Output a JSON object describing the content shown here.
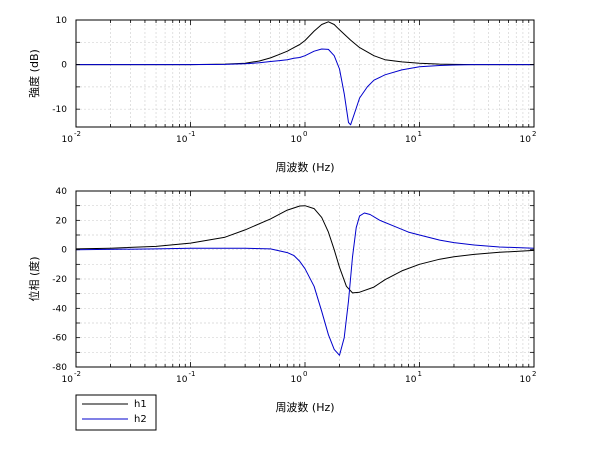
{
  "chart_data": [
    {
      "type": "line",
      "panel": "magnitude",
      "xscale": "log",
      "xlim": [
        0.01,
        100
      ],
      "ylim": [
        -14,
        10
      ],
      "xlabel": "周波数 (Hz)",
      "ylabel": "強度 (dB)",
      "x_ticks": [
        {
          "value": 0.01,
          "base": "10",
          "exp": "-2"
        },
        {
          "value": 0.1,
          "base": "10",
          "exp": "-1"
        },
        {
          "value": 1,
          "base": "10",
          "exp": "0"
        },
        {
          "value": 10,
          "base": "10",
          "exp": "1"
        },
        {
          "value": 100,
          "base": "10",
          "exp": "2"
        }
      ],
      "y_ticks": [
        {
          "value": 10,
          "label": "10"
        },
        {
          "value": 0,
          "label": "0"
        },
        {
          "value": -10,
          "label": "-10"
        }
      ],
      "grid": true,
      "series": [
        {
          "name": "h1",
          "color": "#000000",
          "x": [
            0.01,
            0.05,
            0.1,
            0.2,
            0.3,
            0.4,
            0.5,
            0.6,
            0.7,
            0.8,
            0.9,
            1.0,
            1.2,
            1.4,
            1.6,
            1.8,
            2.0,
            2.5,
            3.0,
            4.0,
            5.0,
            7.0,
            10,
            15,
            20,
            30,
            50,
            100
          ],
          "y": [
            0,
            0,
            0,
            0.1,
            0.3,
            0.8,
            1.5,
            2.3,
            3.0,
            3.8,
            4.5,
            5.4,
            7.5,
            9.0,
            9.6,
            9.0,
            7.8,
            5.5,
            3.8,
            2.0,
            1.1,
            0.6,
            0.3,
            0.1,
            0.05,
            0,
            0,
            0
          ]
        },
        {
          "name": "h2",
          "color": "#0000cc",
          "x": [
            0.01,
            0.05,
            0.1,
            0.2,
            0.3,
            0.4,
            0.5,
            0.6,
            0.7,
            0.8,
            0.9,
            1.0,
            1.2,
            1.4,
            1.6,
            1.8,
            2.0,
            2.2,
            2.4,
            2.5,
            2.7,
            3.0,
            3.5,
            4.0,
            5.0,
            7.0,
            10,
            15,
            20,
            30,
            50,
            100
          ],
          "y": [
            0,
            0,
            0,
            0.05,
            0.2,
            0.4,
            0.7,
            0.9,
            1.1,
            1.4,
            1.6,
            2.0,
            3.0,
            3.5,
            3.4,
            2.0,
            -1.0,
            -6.5,
            -13.0,
            -13.5,
            -11.0,
            -7.5,
            -5.0,
            -3.5,
            -2.3,
            -1.2,
            -0.5,
            -0.2,
            -0.1,
            0,
            0,
            0
          ]
        }
      ]
    },
    {
      "type": "line",
      "panel": "phase",
      "xscale": "log",
      "xlim": [
        0.01,
        100
      ],
      "ylim": [
        -80,
        40
      ],
      "xlabel": "周波数 (Hz)",
      "ylabel": "位相 (度)",
      "x_ticks": [
        {
          "value": 0.01,
          "base": "10",
          "exp": "-2"
        },
        {
          "value": 0.1,
          "base": "10",
          "exp": "-1"
        },
        {
          "value": 1,
          "base": "10",
          "exp": "0"
        },
        {
          "value": 10,
          "base": "10",
          "exp": "1"
        },
        {
          "value": 100,
          "base": "10",
          "exp": "2"
        }
      ],
      "y_ticks": [
        {
          "value": 40,
          "label": "40"
        },
        {
          "value": 20,
          "label": "20"
        },
        {
          "value": 0,
          "label": "0"
        },
        {
          "value": -20,
          "label": "-20"
        },
        {
          "value": -40,
          "label": "-40"
        },
        {
          "value": -60,
          "label": "-60"
        },
        {
          "value": -80,
          "label": "-80"
        }
      ],
      "grid": true,
      "series": [
        {
          "name": "h1",
          "color": "#000000",
          "x": [
            0.01,
            0.02,
            0.05,
            0.1,
            0.2,
            0.3,
            0.5,
            0.7,
            0.9,
            1.0,
            1.2,
            1.4,
            1.6,
            1.8,
            2.0,
            2.3,
            2.6,
            3.0,
            4.0,
            5.0,
            7.0,
            10,
            15,
            20,
            30,
            50,
            100
          ],
          "y": [
            0.5,
            1.0,
            2.2,
            4.5,
            8.5,
            13.5,
            21.0,
            27.0,
            29.8,
            30.0,
            28.0,
            22.0,
            12.0,
            0.0,
            -12.0,
            -25.0,
            -29.5,
            -29.0,
            -25.5,
            -20.5,
            -14.5,
            -10.0,
            -6.5,
            -4.8,
            -3.2,
            -1.8,
            -0.5
          ]
        },
        {
          "name": "h2",
          "color": "#0000cc",
          "x": [
            0.01,
            0.05,
            0.1,
            0.2,
            0.3,
            0.5,
            0.7,
            0.8,
            0.9,
            1.0,
            1.2,
            1.4,
            1.6,
            1.8,
            2.0,
            2.2,
            2.4,
            2.6,
            2.8,
            3.0,
            3.3,
            3.7,
            4.5,
            6.0,
            8.0,
            10,
            15,
            20,
            30,
            50,
            100
          ],
          "y": [
            0,
            0.5,
            1.0,
            1.0,
            1.0,
            0.5,
            -2.0,
            -4.0,
            -8.0,
            -13.0,
            -25.0,
            -42.0,
            -58.0,
            -68.0,
            -72.0,
            -60.0,
            -35.0,
            -5.0,
            15.0,
            23.0,
            25.0,
            24.0,
            20.0,
            16.0,
            12.0,
            10.0,
            6.5,
            4.8,
            3.2,
            1.8,
            1.0
          ]
        }
      ]
    }
  ],
  "legend": {
    "placement": "bottom-left",
    "entries": [
      {
        "label": "h1",
        "color": "#000000"
      },
      {
        "label": "h2",
        "color": "#0000cc"
      }
    ]
  }
}
